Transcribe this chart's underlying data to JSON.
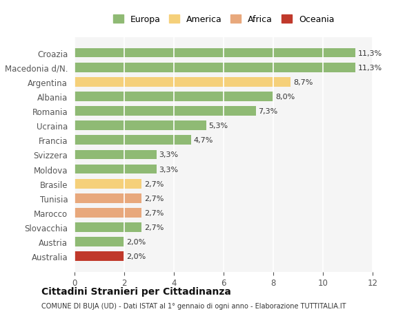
{
  "categories": [
    "Australia",
    "Austria",
    "Slovacchia",
    "Marocco",
    "Tunisia",
    "Brasile",
    "Moldova",
    "Svizzera",
    "Francia",
    "Ucraina",
    "Romania",
    "Albania",
    "Argentina",
    "Macedonia d/N.",
    "Croazia"
  ],
  "values": [
    2.0,
    2.0,
    2.7,
    2.7,
    2.7,
    2.7,
    3.3,
    3.3,
    4.7,
    5.3,
    7.3,
    8.0,
    8.7,
    11.3,
    11.3
  ],
  "labels": [
    "2,0%",
    "2,0%",
    "2,7%",
    "2,7%",
    "2,7%",
    "2,7%",
    "3,3%",
    "3,3%",
    "4,7%",
    "5,3%",
    "7,3%",
    "8,0%",
    "8,7%",
    "11,3%",
    "11,3%"
  ],
  "colors": [
    "#c0392b",
    "#8fba74",
    "#8fba74",
    "#e8a87c",
    "#e8a87c",
    "#f5d07a",
    "#8fba74",
    "#8fba74",
    "#8fba74",
    "#8fba74",
    "#8fba74",
    "#8fba74",
    "#f5d07a",
    "#8fba74",
    "#8fba74"
  ],
  "legend": {
    "Europa": "#8fba74",
    "America": "#f5d07a",
    "Africa": "#e8a87c",
    "Oceania": "#c0392b"
  },
  "title": "Cittadini Stranieri per Cittadinanza",
  "subtitle": "COMUNE DI BUJA (UD) - Dati ISTAT al 1° gennaio di ogni anno - Elaborazione TUTTITALIA.IT",
  "xlim": [
    0,
    12
  ],
  "xticks": [
    0,
    2,
    4,
    6,
    8,
    10,
    12
  ],
  "background_color": "#ffffff",
  "bar_background": "#f5f5f5",
  "grid_color": "#ffffff"
}
